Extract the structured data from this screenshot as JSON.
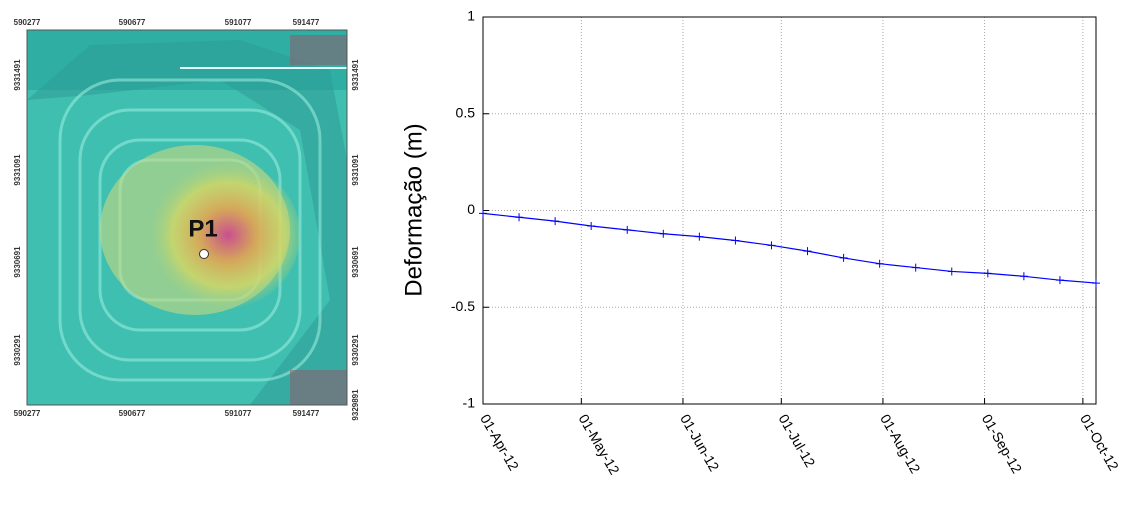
{
  "map": {
    "x_labels_top": [
      "590277",
      "590677",
      "591077",
      "591477"
    ],
    "x_labels_bottom": [
      "590277",
      "590677",
      "591077",
      "591477"
    ],
    "y_labels_left": [
      "9331491",
      "9331091",
      "9330691",
      "9330291"
    ],
    "y_labels_right": [
      "9331491",
      "9331091",
      "9330691",
      "9330291",
      "9329891"
    ],
    "point_label": "P1"
  },
  "chart_data": {
    "type": "line",
    "ylabel": "Deformação (m)",
    "x": [
      "2012-04-01",
      "2012-04-12",
      "2012-04-23",
      "2012-05-04",
      "2012-05-15",
      "2012-05-26",
      "2012-06-06",
      "2012-06-17",
      "2012-06-28",
      "2012-07-09",
      "2012-07-20",
      "2012-07-31",
      "2012-08-11",
      "2012-08-22",
      "2012-09-02",
      "2012-09-13",
      "2012-09-24",
      "2012-10-05"
    ],
    "series": [
      {
        "color": "#0000ff",
        "values": [
          -0.015,
          -0.035,
          -0.055,
          -0.08,
          -0.1,
          -0.12,
          -0.135,
          -0.155,
          -0.18,
          -0.21,
          -0.245,
          -0.275,
          -0.295,
          -0.315,
          -0.325,
          -0.34,
          -0.36,
          -0.375
        ]
      }
    ],
    "xlim": [
      "2012-04-01",
      "2012-10-05"
    ],
    "xticks": [
      {
        "value": "2012-04-01",
        "label": "01-Apr-12"
      },
      {
        "value": "2012-05-01",
        "label": "01-May-12"
      },
      {
        "value": "2012-06-01",
        "label": "01-Jun-12"
      },
      {
        "value": "2012-07-01",
        "label": "01-Jul-12"
      },
      {
        "value": "2012-08-01",
        "label": "01-Aug-12"
      },
      {
        "value": "2012-09-01",
        "label": "01-Sep-12"
      },
      {
        "value": "2012-10-01",
        "label": "01-Oct-12"
      }
    ],
    "ylim": [
      -1,
      1
    ],
    "yticks": [
      1,
      0.5,
      0,
      -0.5,
      -1
    ],
    "grid": true
  }
}
